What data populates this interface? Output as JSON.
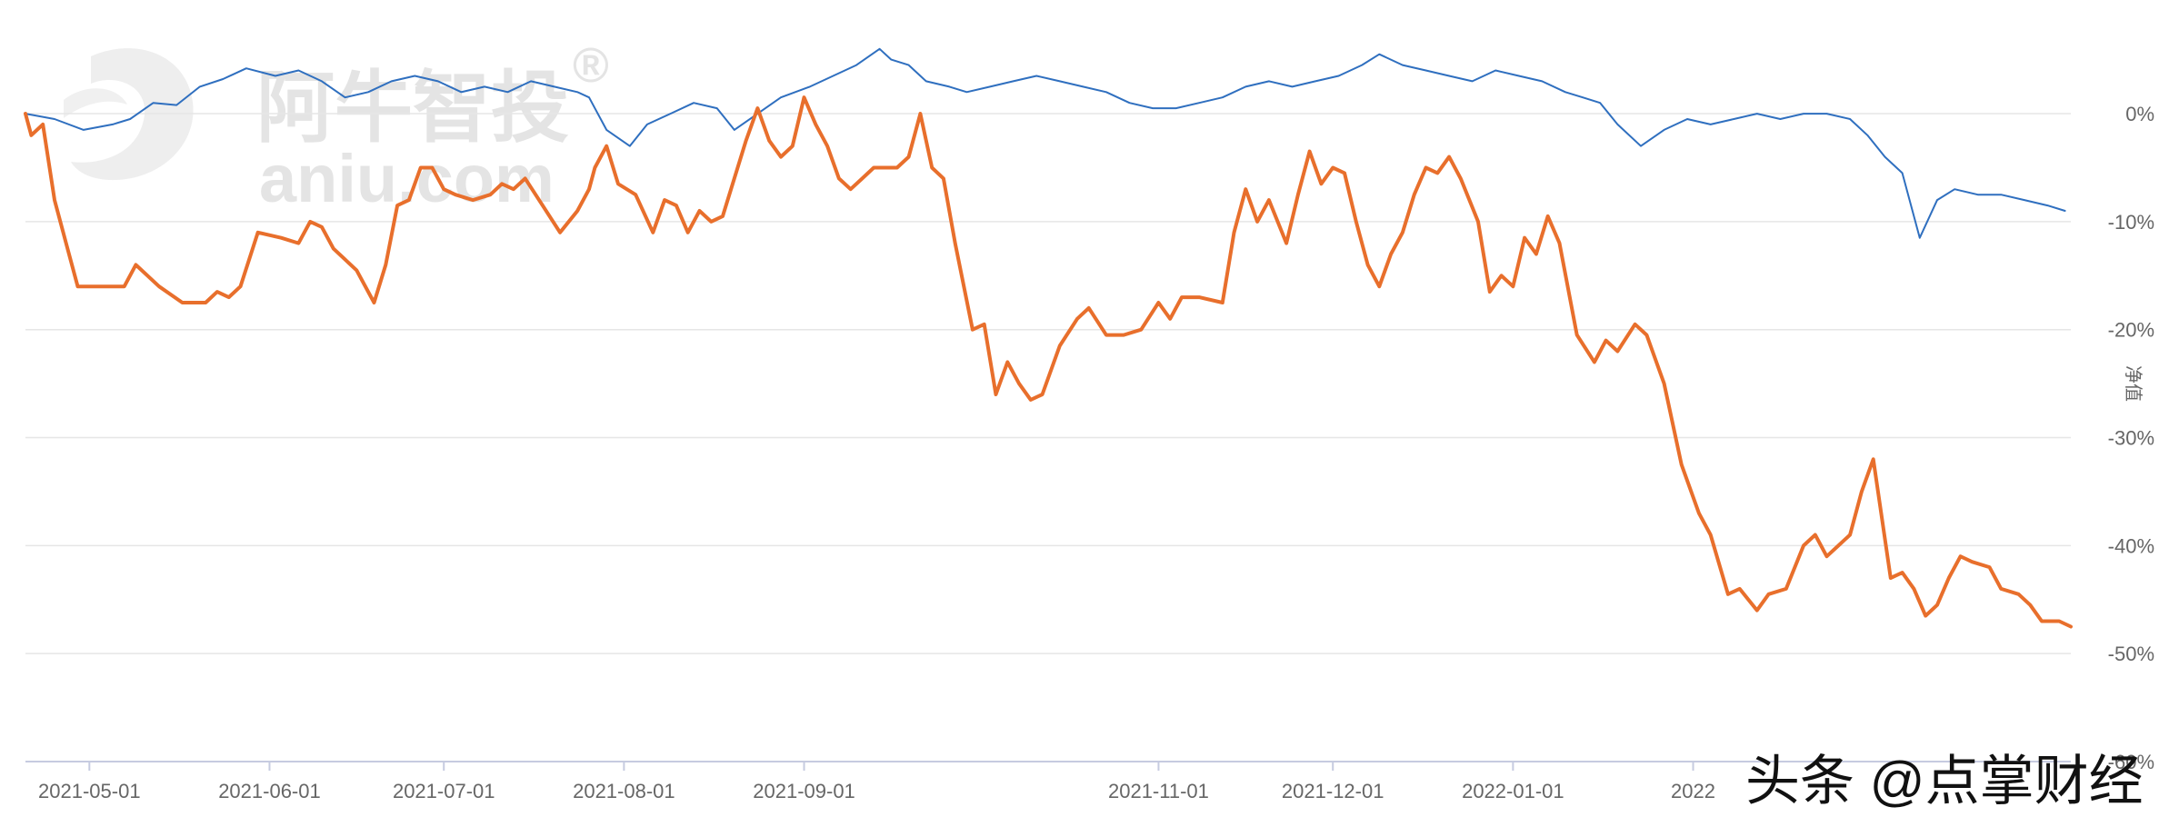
{
  "watermark": {
    "brand": "阿牛智投",
    "domain": "aniu.com",
    "mark": "®"
  },
  "credit": "头条 @点掌财经",
  "chart_data": {
    "type": "line",
    "title": "",
    "xlabel": "",
    "ylabel": "净值",
    "x_tick_labels": [
      "2021-05-01",
      "2021-06-01",
      "2021-07-01",
      "2021-08-01",
      "2021-09-01",
      "2021-11-01",
      "2021-12-01",
      "2022-01-01",
      "2022"
    ],
    "x_tick_dates": [
      "2021-05-01",
      "2021-06-01",
      "2021-07-01",
      "2021-08-01",
      "2021-09-01",
      "2021-11-01",
      "2021-12-01",
      "2022-01-01",
      "2022-02-01"
    ],
    "y_tick_labels": [
      "0%",
      "-10%",
      "-20%",
      "-30%",
      "-40%",
      "-50%",
      "-60%"
    ],
    "y_tick_values": [
      0,
      -10,
      -20,
      -30,
      -40,
      -50,
      -60
    ],
    "ylim": [
      -60,
      8
    ],
    "xlim": [
      "2021-04-20",
      "2022-04-07"
    ],
    "y_axis_position": "right",
    "grid": "horizontal",
    "legend": "none",
    "series": [
      {
        "color": "#2f6fbf",
        "points": [
          [
            "2021-04-20",
            0.0
          ],
          [
            "2021-04-25",
            -0.5
          ],
          [
            "2021-04-30",
            -1.5
          ],
          [
            "2021-05-05",
            -1.0
          ],
          [
            "2021-05-08",
            -0.5
          ],
          [
            "2021-05-12",
            1.0
          ],
          [
            "2021-05-16",
            0.8
          ],
          [
            "2021-05-20",
            2.5
          ],
          [
            "2021-05-24",
            3.2
          ],
          [
            "2021-05-28",
            4.2
          ],
          [
            "2021-06-02",
            3.5
          ],
          [
            "2021-06-06",
            4.0
          ],
          [
            "2021-06-10",
            3.0
          ],
          [
            "2021-06-14",
            1.5
          ],
          [
            "2021-06-18",
            2.0
          ],
          [
            "2021-06-22",
            3.0
          ],
          [
            "2021-06-26",
            3.5
          ],
          [
            "2021-06-30",
            3.0
          ],
          [
            "2021-07-04",
            2.0
          ],
          [
            "2021-07-08",
            2.5
          ],
          [
            "2021-07-12",
            2.0
          ],
          [
            "2021-07-16",
            3.0
          ],
          [
            "2021-07-20",
            2.5
          ],
          [
            "2021-07-24",
            2.0
          ],
          [
            "2021-07-26",
            1.5
          ],
          [
            "2021-07-29",
            -1.5
          ],
          [
            "2021-08-02",
            -3.0
          ],
          [
            "2021-08-05",
            -1.0
          ],
          [
            "2021-08-09",
            0.0
          ],
          [
            "2021-08-13",
            1.0
          ],
          [
            "2021-08-17",
            0.5
          ],
          [
            "2021-08-20",
            -1.5
          ],
          [
            "2021-08-24",
            0.0
          ],
          [
            "2021-08-28",
            1.5
          ],
          [
            "2021-09-02",
            2.5
          ],
          [
            "2021-09-06",
            3.5
          ],
          [
            "2021-09-10",
            4.5
          ],
          [
            "2021-09-14",
            6.0
          ],
          [
            "2021-09-16",
            5.0
          ],
          [
            "2021-09-19",
            4.5
          ],
          [
            "2021-09-22",
            3.0
          ],
          [
            "2021-09-26",
            2.5
          ],
          [
            "2021-09-29",
            2.0
          ],
          [
            "2021-10-03",
            2.5
          ],
          [
            "2021-10-07",
            3.0
          ],
          [
            "2021-10-11",
            3.5
          ],
          [
            "2021-10-15",
            3.0
          ],
          [
            "2021-10-19",
            2.5
          ],
          [
            "2021-10-23",
            2.0
          ],
          [
            "2021-10-27",
            1.0
          ],
          [
            "2021-10-31",
            0.5
          ],
          [
            "2021-11-04",
            0.5
          ],
          [
            "2021-11-08",
            1.0
          ],
          [
            "2021-11-12",
            1.5
          ],
          [
            "2021-11-16",
            2.5
          ],
          [
            "2021-11-20",
            3.0
          ],
          [
            "2021-11-24",
            2.5
          ],
          [
            "2021-11-28",
            3.0
          ],
          [
            "2021-12-02",
            3.5
          ],
          [
            "2021-12-06",
            4.5
          ],
          [
            "2021-12-09",
            5.5
          ],
          [
            "2021-12-13",
            4.5
          ],
          [
            "2021-12-17",
            4.0
          ],
          [
            "2021-12-21",
            3.5
          ],
          [
            "2021-12-25",
            3.0
          ],
          [
            "2021-12-29",
            4.0
          ],
          [
            "2022-01-02",
            3.5
          ],
          [
            "2022-01-06",
            3.0
          ],
          [
            "2022-01-10",
            2.0
          ],
          [
            "2022-01-13",
            1.5
          ],
          [
            "2022-01-16",
            1.0
          ],
          [
            "2022-01-19",
            -1.0
          ],
          [
            "2022-01-23",
            -3.0
          ],
          [
            "2022-01-27",
            -1.5
          ],
          [
            "2022-01-31",
            -0.5
          ],
          [
            "2022-02-04",
            -1.0
          ],
          [
            "2022-02-08",
            -0.5
          ],
          [
            "2022-02-12",
            0.0
          ],
          [
            "2022-02-16",
            -0.5
          ],
          [
            "2022-02-20",
            0.0
          ],
          [
            "2022-02-24",
            0.0
          ],
          [
            "2022-02-28",
            -0.5
          ],
          [
            "2022-03-03",
            -2.0
          ],
          [
            "2022-03-06",
            -4.0
          ],
          [
            "2022-03-09",
            -5.5
          ],
          [
            "2022-03-12",
            -11.5
          ],
          [
            "2022-03-15",
            -8.0
          ],
          [
            "2022-03-18",
            -7.0
          ],
          [
            "2022-03-22",
            -7.5
          ],
          [
            "2022-03-26",
            -7.5
          ],
          [
            "2022-03-30",
            -8.0
          ],
          [
            "2022-04-03",
            -8.5
          ],
          [
            "2022-04-06",
            -9.0
          ]
        ]
      },
      {
        "color": "#e86f2c",
        "points": [
          [
            "2021-04-20",
            0.0
          ],
          [
            "2021-04-21",
            -2.0
          ],
          [
            "2021-04-23",
            -1.0
          ],
          [
            "2021-04-25",
            -8.0
          ],
          [
            "2021-04-27",
            -12.0
          ],
          [
            "2021-04-29",
            -16.0
          ],
          [
            "2021-05-03",
            -16.0
          ],
          [
            "2021-05-07",
            -16.0
          ],
          [
            "2021-05-09",
            -14.0
          ],
          [
            "2021-05-13",
            -16.0
          ],
          [
            "2021-05-17",
            -17.5
          ],
          [
            "2021-05-21",
            -17.5
          ],
          [
            "2021-05-23",
            -16.5
          ],
          [
            "2021-05-25",
            -17.0
          ],
          [
            "2021-05-27",
            -16.0
          ],
          [
            "2021-05-30",
            -11.0
          ],
          [
            "2021-06-03",
            -11.5
          ],
          [
            "2021-06-06",
            -12.0
          ],
          [
            "2021-06-08",
            -10.0
          ],
          [
            "2021-06-10",
            -10.5
          ],
          [
            "2021-06-12",
            -12.5
          ],
          [
            "2021-06-16",
            -14.5
          ],
          [
            "2021-06-19",
            -17.5
          ],
          [
            "2021-06-21",
            -14.0
          ],
          [
            "2021-06-23",
            -8.5
          ],
          [
            "2021-06-25",
            -8.0
          ],
          [
            "2021-06-27",
            -5.0
          ],
          [
            "2021-06-29",
            -5.0
          ],
          [
            "2021-07-01",
            -7.0
          ],
          [
            "2021-07-03",
            -7.5
          ],
          [
            "2021-07-06",
            -8.0
          ],
          [
            "2021-07-09",
            -7.5
          ],
          [
            "2021-07-11",
            -6.5
          ],
          [
            "2021-07-13",
            -7.0
          ],
          [
            "2021-07-15",
            -6.0
          ],
          [
            "2021-07-18",
            -8.5
          ],
          [
            "2021-07-21",
            -11.0
          ],
          [
            "2021-07-24",
            -9.0
          ],
          [
            "2021-07-26",
            -7.0
          ],
          [
            "2021-07-27",
            -5.0
          ],
          [
            "2021-07-29",
            -3.0
          ],
          [
            "2021-07-31",
            -6.5
          ],
          [
            "2021-08-03",
            -7.5
          ],
          [
            "2021-08-06",
            -11.0
          ],
          [
            "2021-08-08",
            -8.0
          ],
          [
            "2021-08-10",
            -8.5
          ],
          [
            "2021-08-12",
            -11.0
          ],
          [
            "2021-08-14",
            -9.0
          ],
          [
            "2021-08-16",
            -10.0
          ],
          [
            "2021-08-18",
            -9.5
          ],
          [
            "2021-08-22",
            -2.5
          ],
          [
            "2021-08-24",
            0.5
          ],
          [
            "2021-08-26",
            -2.5
          ],
          [
            "2021-08-28",
            -4.0
          ],
          [
            "2021-08-30",
            -3.0
          ],
          [
            "2021-09-01",
            1.5
          ],
          [
            "2021-09-03",
            -1.0
          ],
          [
            "2021-09-05",
            -3.0
          ],
          [
            "2021-09-07",
            -6.0
          ],
          [
            "2021-09-09",
            -7.0
          ],
          [
            "2021-09-11",
            -6.0
          ],
          [
            "2021-09-13",
            -5.0
          ],
          [
            "2021-09-17",
            -5.0
          ],
          [
            "2021-09-19",
            -4.0
          ],
          [
            "2021-09-21",
            0.0
          ],
          [
            "2021-09-23",
            -5.0
          ],
          [
            "2021-09-25",
            -6.0
          ],
          [
            "2021-09-27",
            -12.0
          ],
          [
            "2021-09-30",
            -20.0
          ],
          [
            "2021-10-02",
            -19.5
          ],
          [
            "2021-10-04",
            -26.0
          ],
          [
            "2021-10-06",
            -23.0
          ],
          [
            "2021-10-08",
            -25.0
          ],
          [
            "2021-10-10",
            -26.5
          ],
          [
            "2021-10-12",
            -26.0
          ],
          [
            "2021-10-15",
            -21.5
          ],
          [
            "2021-10-18",
            -19.0
          ],
          [
            "2021-10-20",
            -18.0
          ],
          [
            "2021-10-23",
            -20.5
          ],
          [
            "2021-10-26",
            -20.5
          ],
          [
            "2021-10-29",
            -20.0
          ],
          [
            "2021-11-01",
            -17.5
          ],
          [
            "2021-11-03",
            -19.0
          ],
          [
            "2021-11-05",
            -17.0
          ],
          [
            "2021-11-08",
            -17.0
          ],
          [
            "2021-11-12",
            -17.5
          ],
          [
            "2021-11-14",
            -11.0
          ],
          [
            "2021-11-16",
            -7.0
          ],
          [
            "2021-11-18",
            -10.0
          ],
          [
            "2021-11-20",
            -8.0
          ],
          [
            "2021-11-23",
            -12.0
          ],
          [
            "2021-11-25",
            -7.5
          ],
          [
            "2021-11-27",
            -3.5
          ],
          [
            "2021-11-29",
            -6.5
          ],
          [
            "2021-12-01",
            -5.0
          ],
          [
            "2021-12-03",
            -5.5
          ],
          [
            "2021-12-05",
            -10.0
          ],
          [
            "2021-12-07",
            -14.0
          ],
          [
            "2021-12-09",
            -16.0
          ],
          [
            "2021-12-11",
            -13.0
          ],
          [
            "2021-12-13",
            -11.0
          ],
          [
            "2021-12-15",
            -7.5
          ],
          [
            "2021-12-17",
            -5.0
          ],
          [
            "2021-12-19",
            -5.5
          ],
          [
            "2021-12-21",
            -4.0
          ],
          [
            "2021-12-23",
            -6.0
          ],
          [
            "2021-12-26",
            -10.0
          ],
          [
            "2021-12-28",
            -16.5
          ],
          [
            "2021-12-30",
            -15.0
          ],
          [
            "2022-01-01",
            -16.0
          ],
          [
            "2022-01-03",
            -11.5
          ],
          [
            "2022-01-05",
            -13.0
          ],
          [
            "2022-01-07",
            -9.5
          ],
          [
            "2022-01-09",
            -12.0
          ],
          [
            "2022-01-12",
            -20.5
          ],
          [
            "2022-01-15",
            -23.0
          ],
          [
            "2022-01-17",
            -21.0
          ],
          [
            "2022-01-19",
            -22.0
          ],
          [
            "2022-01-22",
            -19.5
          ],
          [
            "2022-01-24",
            -20.5
          ],
          [
            "2022-01-27",
            -25.0
          ],
          [
            "2022-01-30",
            -32.5
          ],
          [
            "2022-02-02",
            -37.0
          ],
          [
            "2022-02-04",
            -39.0
          ],
          [
            "2022-02-07",
            -44.5
          ],
          [
            "2022-02-09",
            -44.0
          ],
          [
            "2022-02-12",
            -46.0
          ],
          [
            "2022-02-14",
            -44.5
          ],
          [
            "2022-02-17",
            -44.0
          ],
          [
            "2022-02-20",
            -40.0
          ],
          [
            "2022-02-22",
            -39.0
          ],
          [
            "2022-02-24",
            -41.0
          ],
          [
            "2022-02-26",
            -40.0
          ],
          [
            "2022-02-28",
            -39.0
          ],
          [
            "2022-03-02",
            -35.0
          ],
          [
            "2022-03-04",
            -32.0
          ],
          [
            "2022-03-07",
            -43.0
          ],
          [
            "2022-03-09",
            -42.5
          ],
          [
            "2022-03-11",
            -44.0
          ],
          [
            "2022-03-13",
            -46.5
          ],
          [
            "2022-03-15",
            -45.5
          ],
          [
            "2022-03-17",
            -43.0
          ],
          [
            "2022-03-19",
            -41.0
          ],
          [
            "2022-03-21",
            -41.5
          ],
          [
            "2022-03-24",
            -42.0
          ],
          [
            "2022-03-26",
            -44.0
          ],
          [
            "2022-03-29",
            -44.5
          ],
          [
            "2022-03-31",
            -45.5
          ],
          [
            "2022-04-02",
            -47.0
          ],
          [
            "2022-04-05",
            -47.0
          ],
          [
            "2022-04-07",
            -47.5
          ]
        ]
      }
    ]
  }
}
